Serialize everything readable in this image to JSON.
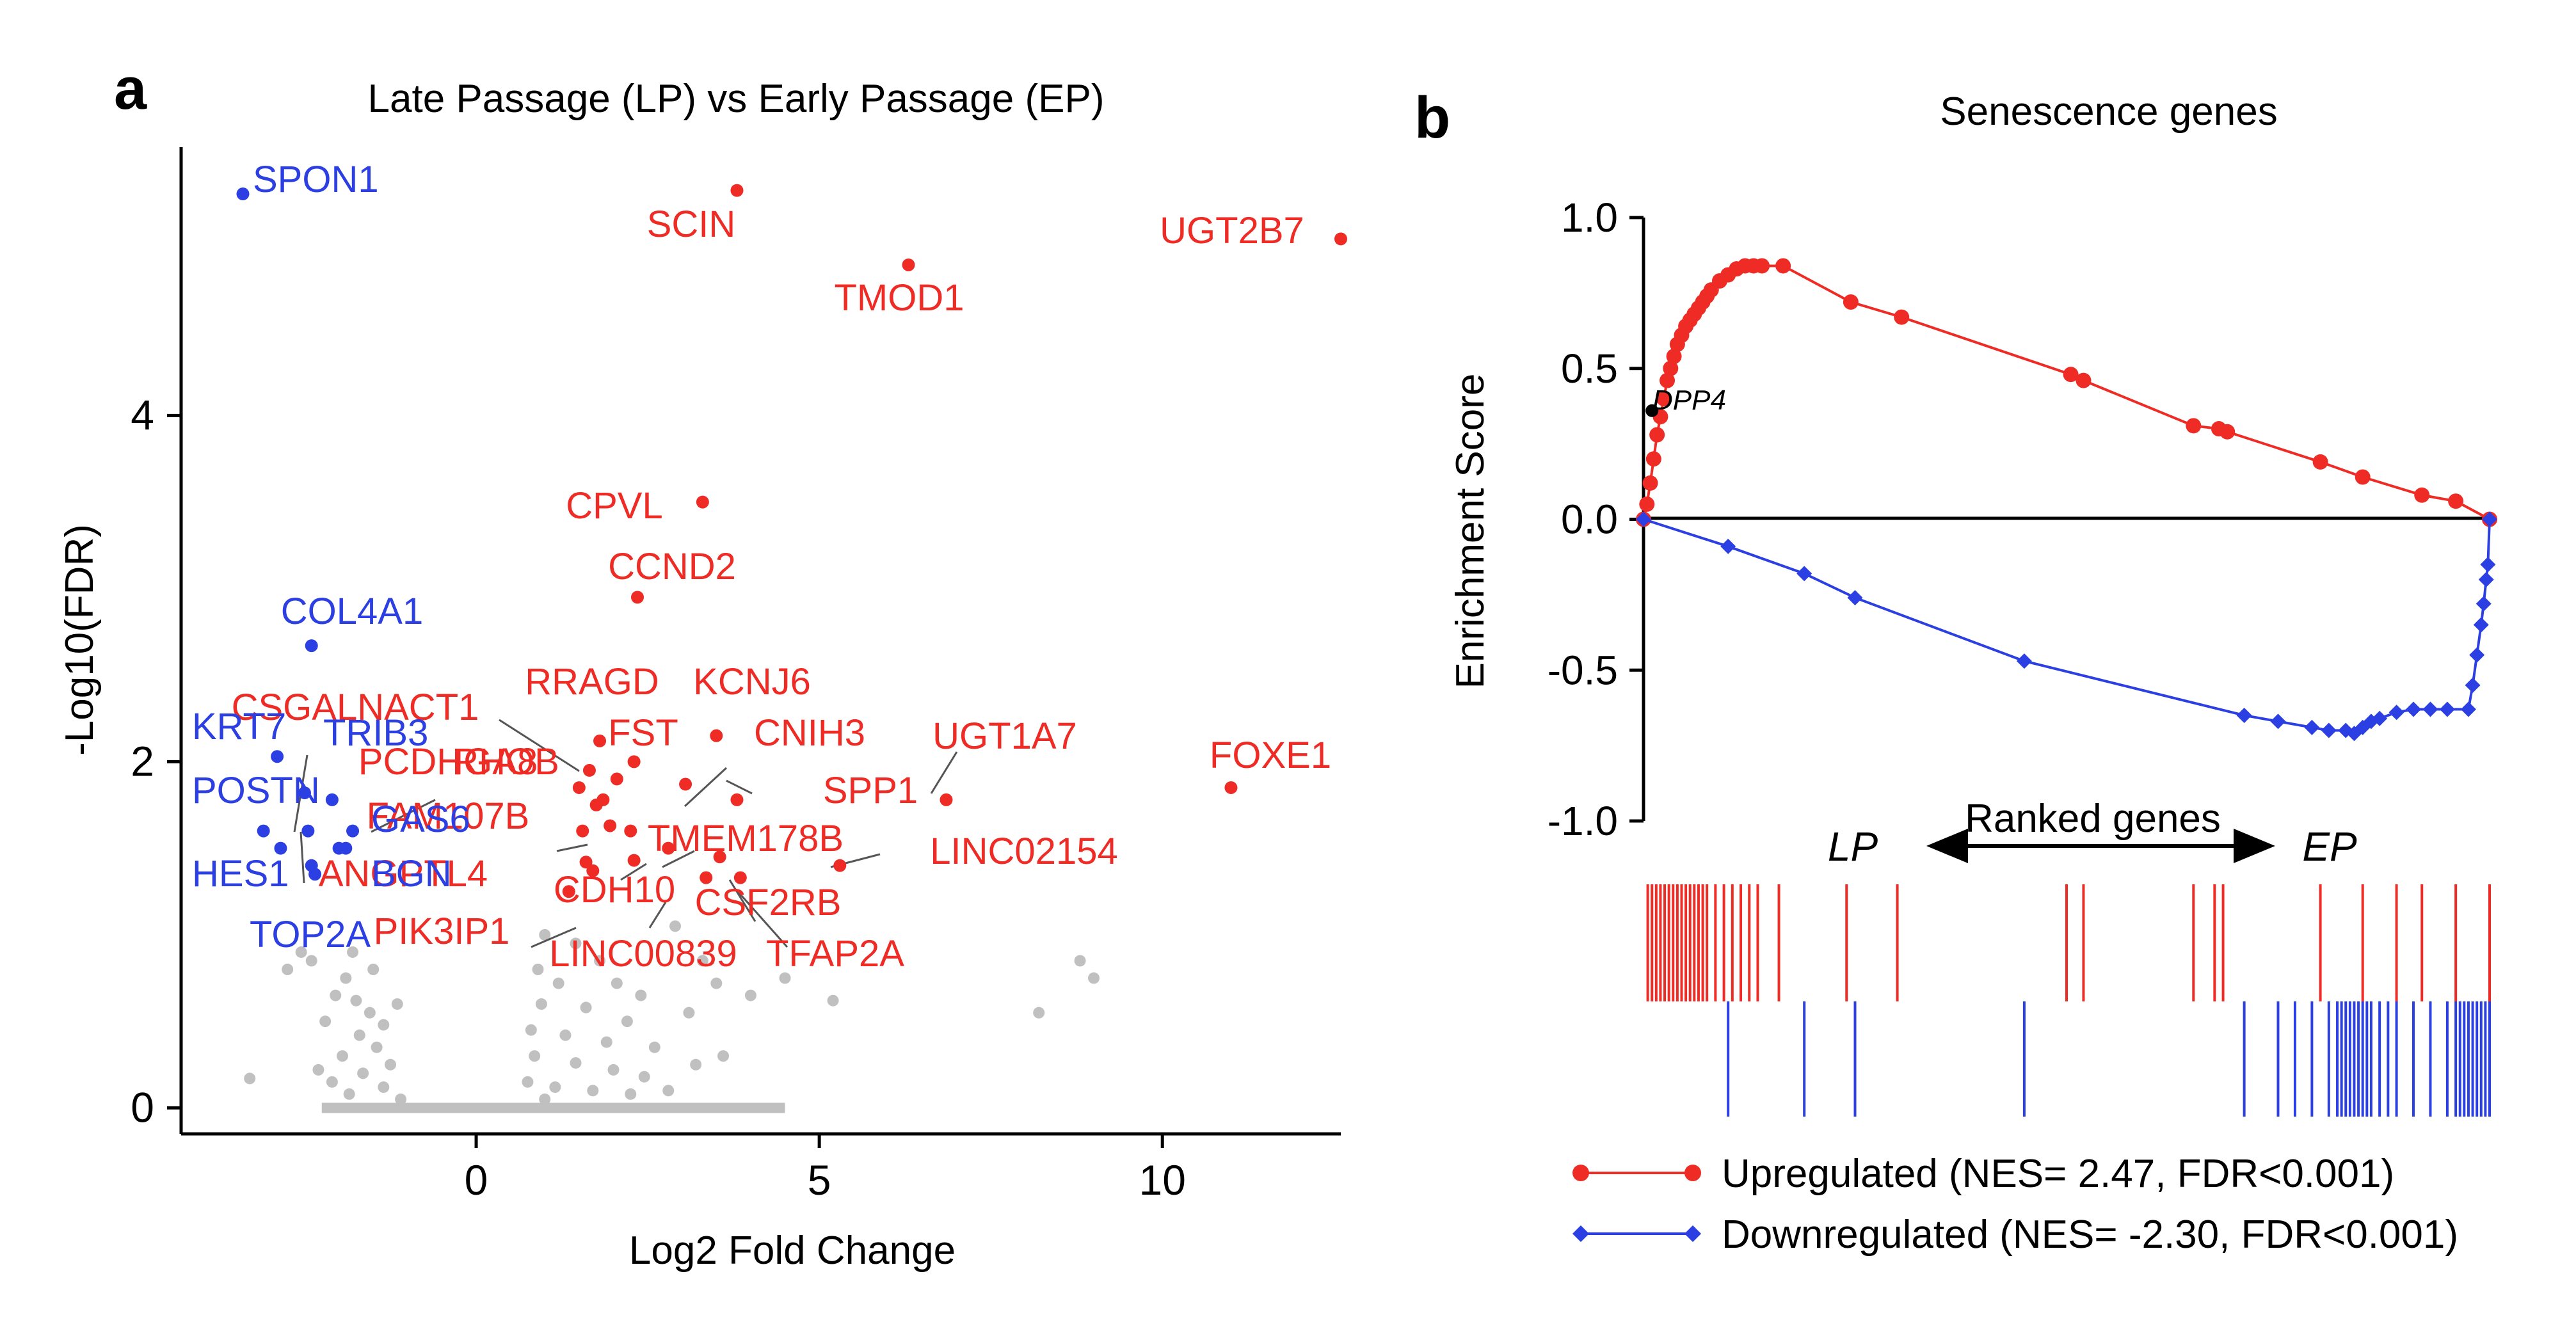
{
  "panels": {
    "a": {
      "letter": "a"
    },
    "b": {
      "letter": "b"
    }
  },
  "chart_data": [
    {
      "type": "scatter",
      "panel": "a",
      "title": "Late Passage (LP) vs Early Passage (EP)",
      "xlabel": "Log2 Fold Change",
      "ylabel": "-Log10(FDR)",
      "xlim": [
        -4.3,
        12.6
      ],
      "ylim": [
        -0.15,
        5.55
      ],
      "xticks": [
        0,
        5,
        10
      ],
      "yticks": [
        0,
        2,
        4
      ],
      "grid": false,
      "colors": {
        "up": "#ee2b24",
        "down": "#2b3fe3",
        "ns": "#c0c0c0"
      },
      "series": [
        {
          "group": "up",
          "points": [
            {
              "label": "SCIN",
              "x": 3.8,
              "y": 5.3
            },
            {
              "label": "TMOD1",
              "x": 6.3,
              "y": 4.87
            },
            {
              "label": "UGT2B7",
              "x": 12.6,
              "y": 5.02
            },
            {
              "label": "CPVL",
              "x": 3.3,
              "y": 3.5
            },
            {
              "label": "CCND2",
              "x": 2.35,
              "y": 2.95
            },
            {
              "label": "RRAGD",
              "x": 1.8,
              "y": 2.12
            },
            {
              "label": "KCNJ6",
              "x": 3.5,
              "y": 2.15
            },
            {
              "label": "FST",
              "x": 2.3,
              "y": 2.0
            },
            {
              "label": "CNIH3",
              "x": 3.05,
              "y": 1.87
            },
            {
              "label": "UGT1A7",
              "x": 6.85,
              "y": 1.78
            },
            {
              "label": "FOXE1",
              "x": 11.0,
              "y": 1.85
            },
            {
              "label": "SPP1",
              "x": 3.8,
              "y": 1.78
            },
            {
              "label": "LINC02154",
              "x": 5.3,
              "y": 1.4
            },
            {
              "label": "TMEM178B",
              "x": 3.35,
              "y": 1.33
            },
            {
              "label": "CSGALNACT1",
              "x": 1.65,
              "y": 1.95
            },
            {
              "label": "PCDHGA8",
              "x": 1.5,
              "y": 1.85
            },
            {
              "label": "RHOB",
              "x": 1.75,
              "y": 1.75
            },
            {
              "label": "FAM107B",
              "x": 1.55,
              "y": 1.6
            },
            {
              "label": "ANGPTL4",
              "x": 1.6,
              "y": 1.42
            },
            {
              "label": "CDH10",
              "x": 2.3,
              "y": 1.43
            },
            {
              "label": "PIK3IP1",
              "x": 1.35,
              "y": 1.25
            },
            {
              "label": "LINC00839",
              "x": 2.8,
              "y": 1.5
            },
            {
              "label": "CSF2RB",
              "x": 3.85,
              "y": 1.33
            },
            {
              "label": "TFAP2A",
              "x": 3.55,
              "y": 1.45
            },
            {
              "label": "",
              "x": 2.05,
              "y": 1.9
            },
            {
              "label": "",
              "x": 1.95,
              "y": 1.63
            },
            {
              "label": "",
              "x": 1.7,
              "y": 1.37
            },
            {
              "label": "",
              "x": 2.25,
              "y": 1.6
            },
            {
              "label": "",
              "x": 1.85,
              "y": 1.78
            }
          ]
        },
        {
          "group": "down",
          "points": [
            {
              "label": "SPON1",
              "x": -3.4,
              "y": 5.28
            },
            {
              "label": "COL4A1",
              "x": -2.4,
              "y": 2.67
            },
            {
              "label": "KRT7",
              "x": -2.9,
              "y": 2.03
            },
            {
              "label": "TRIB3",
              "x": -2.5,
              "y": 1.82
            },
            {
              "label": "POSTN",
              "x": -3.1,
              "y": 1.6
            },
            {
              "label": "GAS6",
              "x": -1.8,
              "y": 1.6
            },
            {
              "label": "HES1",
              "x": -2.85,
              "y": 1.5
            },
            {
              "label": "BGN",
              "x": -2.0,
              "y": 1.5
            },
            {
              "label": "TOP2A",
              "x": -2.35,
              "y": 1.35
            },
            {
              "label": "",
              "x": -2.45,
              "y": 1.6
            },
            {
              "label": "",
              "x": -2.1,
              "y": 1.78
            },
            {
              "label": "",
              "x": -1.9,
              "y": 1.5
            },
            {
              "label": "",
              "x": -2.4,
              "y": 1.4
            }
          ]
        },
        {
          "group": "ns",
          "points": [
            {
              "x": -2.55,
              "y": 0.9
            },
            {
              "x": -2.4,
              "y": 0.85
            },
            {
              "x": -2.75,
              "y": 0.8
            },
            {
              "x": -1.8,
              "y": 0.9
            },
            {
              "x": -1.9,
              "y": 0.75
            },
            {
              "x": -1.5,
              "y": 0.8
            },
            {
              "x": -1.75,
              "y": 0.62
            },
            {
              "x": -1.55,
              "y": 0.55
            },
            {
              "x": -2.05,
              "y": 0.65
            },
            {
              "x": -1.35,
              "y": 0.48
            },
            {
              "x": -1.7,
              "y": 0.42
            },
            {
              "x": -2.2,
              "y": 0.5
            },
            {
              "x": -1.45,
              "y": 0.35
            },
            {
              "x": -1.95,
              "y": 0.3
            },
            {
              "x": -1.25,
              "y": 0.25
            },
            {
              "x": -1.65,
              "y": 0.2
            },
            {
              "x": -2.1,
              "y": 0.15
            },
            {
              "x": -1.35,
              "y": 0.12
            },
            {
              "x": -1.85,
              "y": 0.08
            },
            {
              "x": -1.1,
              "y": 0.05
            },
            {
              "x": -2.3,
              "y": 0.22
            },
            {
              "x": -3.3,
              "y": 0.17
            },
            {
              "x": -1.15,
              "y": 0.6
            },
            {
              "x": 1.0,
              "y": 1.0
            },
            {
              "x": 1.45,
              "y": 0.95
            },
            {
              "x": 1.8,
              "y": 0.85
            },
            {
              "x": 0.9,
              "y": 0.8
            },
            {
              "x": 1.2,
              "y": 0.72
            },
            {
              "x": 2.05,
              "y": 0.72
            },
            {
              "x": 2.4,
              "y": 0.65
            },
            {
              "x": 0.95,
              "y": 0.6
            },
            {
              "x": 1.6,
              "y": 0.58
            },
            {
              "x": 2.2,
              "y": 0.5
            },
            {
              "x": 0.8,
              "y": 0.45
            },
            {
              "x": 1.3,
              "y": 0.42
            },
            {
              "x": 1.9,
              "y": 0.38
            },
            {
              "x": 2.6,
              "y": 0.35
            },
            {
              "x": 0.85,
              "y": 0.3
            },
            {
              "x": 1.45,
              "y": 0.26
            },
            {
              "x": 2.0,
              "y": 0.22
            },
            {
              "x": 2.45,
              "y": 0.18
            },
            {
              "x": 0.75,
              "y": 0.15
            },
            {
              "x": 1.15,
              "y": 0.12
            },
            {
              "x": 1.7,
              "y": 0.1
            },
            {
              "x": 2.25,
              "y": 0.08
            },
            {
              "x": 1.0,
              "y": 0.05
            },
            {
              "x": 2.8,
              "y": 0.1
            },
            {
              "x": 3.1,
              "y": 0.55
            },
            {
              "x": 3.5,
              "y": 0.72
            },
            {
              "x": 4.0,
              "y": 0.65
            },
            {
              "x": 2.9,
              "y": 1.05
            },
            {
              "x": 5.2,
              "y": 0.62
            },
            {
              "x": 8.2,
              "y": 0.55
            },
            {
              "x": 8.8,
              "y": 0.85
            },
            {
              "x": 9.0,
              "y": 0.75
            },
            {
              "x": 4.5,
              "y": 0.75
            },
            {
              "x": 3.3,
              "y": 0.85
            },
            {
              "x": 3.2,
              "y": 0.25
            },
            {
              "x": 3.6,
              "y": 0.3
            }
          ]
        }
      ]
    },
    {
      "type": "line",
      "panel": "b",
      "title": "Senescence genes",
      "xlabel": "Ranked genes",
      "ylabel": "Enrichment Score",
      "xlim": [
        0,
        100
      ],
      "ylim": [
        -1.0,
        1.0
      ],
      "yticks": [
        "1.0",
        "0.5",
        "0.0",
        "-0.5",
        "-1.0"
      ],
      "grid": false,
      "axis_end_labels": {
        "left": "LP",
        "right": "EP"
      },
      "annotation": {
        "text": "DPP4",
        "x": 1.0,
        "y": 0.36
      },
      "legend": {
        "placement": "bottom"
      },
      "series": [
        {
          "name": "Upregulated (NES= 2.47, FDR<0.001)",
          "color": "#ee2b24",
          "marker": "circle",
          "x": [
            0,
            0.4,
            0.8,
            1.2,
            1.6,
            2.0,
            2.4,
            2.8,
            3.2,
            3.6,
            4.0,
            4.5,
            5.0,
            5.5,
            6.0,
            6.5,
            7.0,
            7.5,
            8.0,
            9.0,
            10.0,
            11.0,
            12.0,
            13.0,
            14.0,
            16.5,
            24.5,
            30.5,
            50.5,
            52.0,
            65.0,
            68.0,
            69.0,
            80.0,
            85.0,
            92.0,
            96.0,
            100
          ],
          "values": [
            0.0,
            0.05,
            0.12,
            0.2,
            0.28,
            0.34,
            0.4,
            0.46,
            0.5,
            0.54,
            0.58,
            0.61,
            0.64,
            0.66,
            0.68,
            0.7,
            0.72,
            0.74,
            0.76,
            0.79,
            0.81,
            0.83,
            0.84,
            0.84,
            0.84,
            0.84,
            0.72,
            0.67,
            0.48,
            0.46,
            0.31,
            0.3,
            0.29,
            0.19,
            0.14,
            0.08,
            0.06,
            0.0
          ]
        },
        {
          "name": "Downregulated (NES= -2.30, FDR<0.001)",
          "color": "#2b3fe3",
          "marker": "diamond",
          "x": [
            0,
            10.0,
            19.0,
            25.0,
            45.0,
            71.0,
            75.0,
            79.0,
            81.0,
            83.0,
            84.0,
            85.0,
            86.0,
            87.0,
            89.0,
            91.0,
            93.0,
            95.0,
            97.5,
            98.0,
            98.5,
            99.0,
            99.3,
            99.6,
            99.8,
            100
          ],
          "values": [
            0.0,
            -0.09,
            -0.18,
            -0.26,
            -0.47,
            -0.65,
            -0.67,
            -0.69,
            -0.7,
            -0.7,
            -0.71,
            -0.69,
            -0.67,
            -0.66,
            -0.64,
            -0.63,
            -0.63,
            -0.63,
            -0.63,
            -0.55,
            -0.45,
            -0.35,
            -0.28,
            -0.2,
            -0.15,
            0.0
          ]
        }
      ],
      "rank_ticks": {
        "up": [
          0.5,
          1.0,
          1.5,
          2.0,
          2.5,
          3.0,
          3.5,
          4.0,
          4.5,
          5.0,
          5.5,
          6.0,
          6.5,
          7.0,
          7.5,
          8.5,
          9.5,
          10.5,
          11.5,
          12.5,
          13.5,
          16.0,
          24.0,
          30.0,
          50.0,
          52.0,
          65.0,
          67.5,
          68.5,
          80.0,
          85.0,
          89.0,
          92.0,
          96.0,
          100.0
        ],
        "down": [
          10.0,
          19.0,
          25.0,
          45.0,
          71.0,
          75.0,
          77.0,
          79.0,
          81.0,
          82.0,
          82.5,
          83.0,
          83.5,
          84.0,
          84.5,
          85.0,
          85.5,
          86.0,
          87.0,
          88.0,
          89.0,
          91.0,
          93.0,
          95.0,
          96.0,
          96.5,
          97.0,
          97.5,
          98.0,
          98.5,
          99.0,
          99.5,
          100.0
        ]
      }
    }
  ]
}
